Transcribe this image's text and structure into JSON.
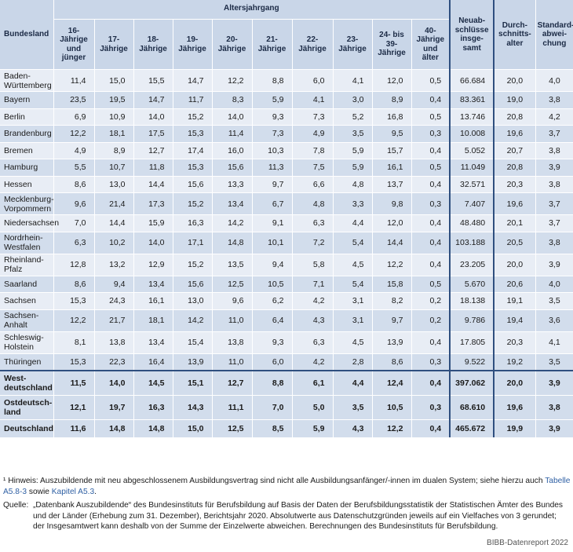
{
  "headers": {
    "bundesland": "Bundesland",
    "altersjahrgang": "Altersjahrgang",
    "age_columns": [
      "16-\nJährige\nund\njünger",
      "17-\nJährige",
      "18-\nJährige",
      "19-\nJährige",
      "20-\nJährige",
      "21-\nJährige",
      "22-\nJährige",
      "23-\nJährige",
      "24- bis\n39-\nJährige",
      "40-\nJährige\nund\nälter"
    ],
    "neuabschluesse": "Neuab-\nschlüsse\ninsge-\nsamt",
    "durchschnittsalter": "Durch-\nschnitts-\nalter",
    "standardabweichung": "Standard-\nabwei-\nchung"
  },
  "rows": [
    {
      "land": "Baden-\nWürttemberg",
      "ages": [
        "11,4",
        "15,0",
        "15,5",
        "14,7",
        "12,2",
        "8,8",
        "6,0",
        "4,1",
        "12,0",
        "0,5"
      ],
      "total": "66.684",
      "avg": "20,0",
      "sd": "4,0"
    },
    {
      "land": "Bayern",
      "ages": [
        "23,5",
        "19,5",
        "14,7",
        "11,7",
        "8,3",
        "5,9",
        "4,1",
        "3,0",
        "8,9",
        "0,4"
      ],
      "total": "83.361",
      "avg": "19,0",
      "sd": "3,8"
    },
    {
      "land": "Berlin",
      "ages": [
        "6,9",
        "10,9",
        "14,0",
        "15,2",
        "14,0",
        "9,3",
        "7,3",
        "5,2",
        "16,8",
        "0,5"
      ],
      "total": "13.746",
      "avg": "20,8",
      "sd": "4,2"
    },
    {
      "land": "Brandenburg",
      "ages": [
        "12,2",
        "18,1",
        "17,5",
        "15,3",
        "11,4",
        "7,3",
        "4,9",
        "3,5",
        "9,5",
        "0,3"
      ],
      "total": "10.008",
      "avg": "19,6",
      "sd": "3,7"
    },
    {
      "land": "Bremen",
      "ages": [
        "4,9",
        "8,9",
        "12,7",
        "17,4",
        "16,0",
        "10,3",
        "7,8",
        "5,9",
        "15,7",
        "0,4"
      ],
      "total": "5.052",
      "avg": "20,7",
      "sd": "3,8"
    },
    {
      "land": "Hamburg",
      "ages": [
        "5,5",
        "10,7",
        "11,8",
        "15,3",
        "15,6",
        "11,3",
        "7,5",
        "5,9",
        "16,1",
        "0,5"
      ],
      "total": "11.049",
      "avg": "20,8",
      "sd": "3,9"
    },
    {
      "land": "Hessen",
      "ages": [
        "8,6",
        "13,0",
        "14,4",
        "15,6",
        "13,3",
        "9,7",
        "6,6",
        "4,8",
        "13,7",
        "0,4"
      ],
      "total": "32.571",
      "avg": "20,3",
      "sd": "3,8"
    },
    {
      "land": "Mecklenburg-\nVorpommern",
      "ages": [
        "9,6",
        "21,4",
        "17,3",
        "15,2",
        "13,4",
        "6,7",
        "4,8",
        "3,3",
        "9,8",
        "0,3"
      ],
      "total": "7.407",
      "avg": "19,6",
      "sd": "3,7"
    },
    {
      "land": "Niedersachsen",
      "ages": [
        "7,0",
        "14,4",
        "15,9",
        "16,3",
        "14,2",
        "9,1",
        "6,3",
        "4,4",
        "12,0",
        "0,4"
      ],
      "total": "48.480",
      "avg": "20,1",
      "sd": "3,7"
    },
    {
      "land": "Nordrhein-\nWestfalen",
      "ages": [
        "6,3",
        "10,2",
        "14,0",
        "17,1",
        "14,8",
        "10,1",
        "7,2",
        "5,4",
        "14,4",
        "0,4"
      ],
      "total": "103.188",
      "avg": "20,5",
      "sd": "3,8"
    },
    {
      "land": "Rheinland-\nPfalz",
      "ages": [
        "12,8",
        "13,2",
        "12,9",
        "15,2",
        "13,5",
        "9,4",
        "5,8",
        "4,5",
        "12,2",
        "0,4"
      ],
      "total": "23.205",
      "avg": "20,0",
      "sd": "3,9"
    },
    {
      "land": "Saarland",
      "ages": [
        "8,6",
        "9,4",
        "13,4",
        "15,6",
        "12,5",
        "10,5",
        "7,1",
        "5,4",
        "15,8",
        "0,5"
      ],
      "total": "5.670",
      "avg": "20,6",
      "sd": "4,0"
    },
    {
      "land": "Sachsen",
      "ages": [
        "15,3",
        "24,3",
        "16,1",
        "13,0",
        "9,6",
        "6,2",
        "4,2",
        "3,1",
        "8,2",
        "0,2"
      ],
      "total": "18.138",
      "avg": "19,1",
      "sd": "3,5"
    },
    {
      "land": "Sachsen-\nAnhalt",
      "ages": [
        "12,2",
        "21,7",
        "18,1",
        "14,2",
        "11,0",
        "6,4",
        "4,3",
        "3,1",
        "9,7",
        "0,2"
      ],
      "total": "9.786",
      "avg": "19,4",
      "sd": "3,6"
    },
    {
      "land": "Schleswig-\nHolstein",
      "ages": [
        "8,1",
        "13,8",
        "13,4",
        "15,4",
        "13,8",
        "9,3",
        "6,3",
        "4,5",
        "13,9",
        "0,4"
      ],
      "total": "17.805",
      "avg": "20,3",
      "sd": "4,1"
    },
    {
      "land": "Thüringen",
      "ages": [
        "15,3",
        "22,3",
        "16,4",
        "13,9",
        "11,0",
        "6,0",
        "4,2",
        "2,8",
        "8,6",
        "0,3"
      ],
      "total": "9.522",
      "avg": "19,2",
      "sd": "3,5"
    }
  ],
  "summary": [
    {
      "land": "West-\ndeutschland",
      "ages": [
        "11,5",
        "14,0",
        "14,5",
        "15,1",
        "12,7",
        "8,8",
        "6,1",
        "4,4",
        "12,4",
        "0,4"
      ],
      "total": "397.062",
      "avg": "20,0",
      "sd": "3,9"
    },
    {
      "land": "Ostdeutsch-\nland",
      "ages": [
        "12,1",
        "19,7",
        "16,3",
        "14,3",
        "11,1",
        "7,0",
        "5,0",
        "3,5",
        "10,5",
        "0,3"
      ],
      "total": "68.610",
      "avg": "19,6",
      "sd": "3,8"
    },
    {
      "land": "Deutschland",
      "ages": [
        "11,6",
        "14,8",
        "14,8",
        "15,0",
        "12,5",
        "8,5",
        "5,9",
        "4,3",
        "12,2",
        "0,4"
      ],
      "total": "465.672",
      "avg": "19,9",
      "sd": "3,9"
    }
  ],
  "notes": {
    "footnote_marker": "¹",
    "footnote_text": "Hinweis: Auszubildende mit neu abgeschlossenem Ausbildungsvertrag sind nicht alle Ausbildungsanfänger/-innen im dualen System; siehe hierzu auch",
    "link1": "Tabelle A5.8-3",
    "footnote_sowie": "sowie",
    "link2": "Kapitel A5.3",
    "footnote_end": ".",
    "quelle_label": "Quelle:",
    "quelle_text": "„Datenbank Auszubildende“ des Bundesinstituts für Berufsbildung auf Basis der Daten der Berufsbildungsstatistik der Statistischen Ämter des Bundes und der Länder (Erhebung zum 31. Dezember), Berichtsjahr 2020. Absolutwerte aus Datenschutzgründen jeweils auf ein Vielfaches von 3 gerundet; der Insgesamtwert kann deshalb von der Summe der Einzelwerte abweichen. Berechnungen des Bundesinstituts für Berufsbildung.",
    "credit": "BIBB-Datenreport 2022"
  },
  "colors": {
    "header_bg": "#c9d6e8",
    "row_light": "#e8edf5",
    "row_dark": "#d2ddec",
    "separator": "#2f4f7f",
    "link": "#2e5fa3"
  }
}
